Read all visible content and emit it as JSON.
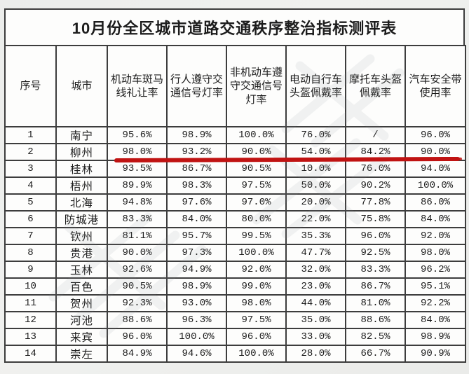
{
  "title": "10月份全区城市道路交通秩序整治指标测评表",
  "table": {
    "columns": [
      "序号",
      "城市",
      "机动车斑马线礼让率",
      "行人遵守交通信号灯率",
      "非机动车遵守交通信号灯率",
      "电动自行车头盔佩戴率",
      "摩托车头盔佩戴率",
      "汽车安全带使用率"
    ],
    "rows": [
      [
        "1",
        "南宁",
        "95.6%",
        "98.9%",
        "100.0%",
        "76.0%",
        "/",
        "96.0%"
      ],
      [
        "2",
        "柳州",
        "98.0%",
        "93.2%",
        "90.0%",
        "54.0%",
        "84.2%",
        "90.0%"
      ],
      [
        "3",
        "桂林",
        "93.5%",
        "86.7%",
        "90.5%",
        "10.0%",
        "76.0%",
        "94.0%"
      ],
      [
        "4",
        "梧州",
        "89.9%",
        "98.3%",
        "97.5%",
        "50.0%",
        "90.2%",
        "100.0%"
      ],
      [
        "5",
        "北海",
        "94.8%",
        "97.6%",
        "97.0%",
        "20.0%",
        "77.8%",
        "86.0%"
      ],
      [
        "6",
        "防城港",
        "83.3%",
        "84.0%",
        "80.0%",
        "22.0%",
        "75.8%",
        "84.0%"
      ],
      [
        "7",
        "钦州",
        "81.1%",
        "95.7%",
        "99.5%",
        "35.3%",
        "96.0%",
        "92.0%"
      ],
      [
        "8",
        "贵港",
        "90.0%",
        "97.3%",
        "100.0%",
        "47.7%",
        "92.5%",
        "98.0%"
      ],
      [
        "9",
        "玉林",
        "92.6%",
        "94.9%",
        "92.0%",
        "32.0%",
        "83.3%",
        "96.2%"
      ],
      [
        "10",
        "百色",
        "90.5%",
        "98.9%",
        "99.0%",
        "23.0%",
        "86.7%",
        "95.1%"
      ],
      [
        "11",
        "贺州",
        "92.3%",
        "93.0%",
        "98.0%",
        "44.0%",
        "81.0%",
        "92.2%"
      ],
      [
        "12",
        "河池",
        "88.6%",
        "96.3%",
        "97.5%",
        "35.0%",
        "88.6%",
        "84.0%"
      ],
      [
        "13",
        "来宾",
        "96.0%",
        "100.0%",
        "96.0%",
        "33.0%",
        "82.5%",
        "98.9%"
      ],
      [
        "14",
        "崇左",
        "84.9%",
        "94.6%",
        "100.0%",
        "28.0%",
        "66.7%",
        "90.9%"
      ]
    ]
  },
  "annotation": {
    "red_underline": {
      "highlighted_row_number": "2",
      "highlighted_city": "柳州",
      "color": "#c01312"
    }
  },
  "colors": {
    "border": "#3d3d3d",
    "background": "#ecedeb",
    "cell_background": "#fdfdfc",
    "text": "#1c1c1c"
  }
}
